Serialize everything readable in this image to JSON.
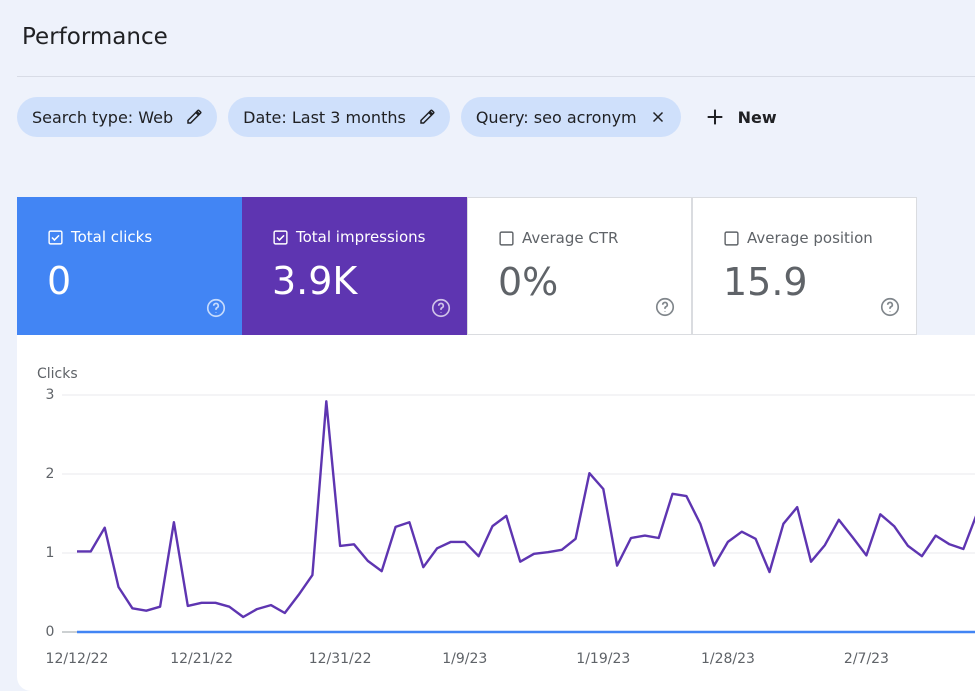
{
  "header": {
    "title": "Performance"
  },
  "filters": [
    {
      "label": "Search type: Web",
      "icon": "edit"
    },
    {
      "label": "Date: Last 3 months",
      "icon": "edit"
    },
    {
      "label": "Query: seo acronym",
      "icon": "close"
    }
  ],
  "new_button": {
    "label": "New"
  },
  "metrics": [
    {
      "label": "Total clicks",
      "value": "0",
      "checked": true,
      "color": "#4285f4"
    },
    {
      "label": "Total impressions",
      "value": "3.9K",
      "checked": true,
      "color": "#5e35b1"
    },
    {
      "label": "Average CTR",
      "value": "0%",
      "checked": false,
      "color": "#ffffff"
    },
    {
      "label": "Average position",
      "value": "15.9",
      "checked": false,
      "color": "#ffffff"
    }
  ],
  "chart_data": {
    "type": "line",
    "y_label": "Clicks",
    "categories": [
      "12/12/22",
      null,
      null,
      null,
      null,
      null,
      null,
      null,
      null,
      "12/21/22",
      null,
      null,
      null,
      null,
      null,
      null,
      null,
      null,
      null,
      "12/31/22",
      null,
      null,
      null,
      null,
      null,
      null,
      null,
      null,
      "1/9/23",
      null,
      null,
      null,
      null,
      null,
      null,
      null,
      null,
      null,
      "1/19/23",
      null,
      null,
      null,
      null,
      null,
      null,
      null,
      null,
      "1/28/23",
      null,
      null,
      null,
      null,
      null,
      null,
      null,
      null,
      null,
      "2/7/23",
      null,
      null,
      null,
      null,
      null,
      null,
      null,
      null
    ],
    "series": [
      {
        "color": "#5e35b1",
        "values": [
          1.02,
          1.02,
          1.32,
          0.57,
          0.3,
          0.27,
          0.32,
          1.39,
          0.33,
          0.37,
          0.37,
          0.32,
          0.19,
          0.29,
          0.34,
          0.24,
          0.47,
          0.72,
          2.92,
          1.09,
          1.11,
          0.9,
          0.77,
          1.33,
          1.39,
          0.82,
          1.06,
          1.14,
          1.14,
          0.96,
          1.34,
          1.47,
          0.89,
          0.99,
          1.01,
          1.04,
          1.18,
          2.01,
          1.81,
          0.84,
          1.19,
          1.22,
          1.19,
          1.75,
          1.72,
          1.37,
          0.84,
          1.14,
          1.27,
          1.18,
          0.76,
          1.37,
          1.58,
          0.89,
          1.1,
          1.42,
          1.2,
          0.97,
          1.49,
          1.34,
          1.09,
          0.96,
          1.22,
          1.11,
          1.05,
          1.51
        ]
      },
      {
        "color": "#4285f4",
        "values": [
          0,
          0,
          0,
          0,
          0,
          0,
          0,
          0,
          0,
          0,
          0,
          0,
          0,
          0,
          0,
          0,
          0,
          0,
          0,
          0,
          0,
          0,
          0,
          0,
          0,
          0,
          0,
          0,
          0,
          0,
          0,
          0,
          0,
          0,
          0,
          0,
          0,
          0,
          0,
          0,
          0,
          0,
          0,
          0,
          0,
          0,
          0,
          0,
          0,
          0,
          0,
          0,
          0,
          0,
          0,
          0,
          0,
          0,
          0,
          0,
          0,
          0,
          0,
          0,
          0,
          0
        ]
      }
    ],
    "ylim": [
      0,
      3
    ],
    "yticks": [
      0,
      1,
      2,
      3
    ],
    "grid": true
  }
}
